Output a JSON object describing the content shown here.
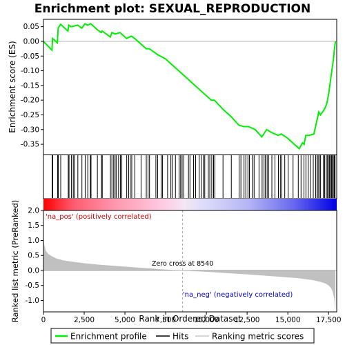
{
  "chart_data": {
    "type": "line",
    "title": "Enrichment plot: SEXUAL_REPRODUCTION",
    "xlabel": "Rank in Ordered Dataset",
    "top_panel": {
      "ylabel": "Enrichment score (ES)",
      "ylim": [
        -0.385,
        0.075
      ],
      "yticks": [
        0.05,
        0.0,
        -0.05,
        -0.1,
        -0.15,
        -0.2,
        -0.25,
        -0.3,
        -0.35
      ],
      "ytick_labels": [
        "0.05",
        "0.00",
        "-0.05",
        "-0.10",
        "-0.15",
        "-0.20",
        "-0.25",
        "-0.30",
        "-0.35"
      ],
      "series": [
        {
          "name": "Enrichment profile",
          "color": "#00ee00",
          "x": [
            0,
            520,
            560,
            850,
            900,
            1050,
            1500,
            1560,
            1700,
            2100,
            2350,
            2550,
            2700,
            2900,
            3300,
            3550,
            3600,
            4100,
            4200,
            4400,
            4700,
            4800,
            5100,
            5400,
            5600,
            6300,
            6500,
            7000,
            7500,
            8000,
            8500,
            9000,
            9500,
            10000,
            10300,
            10500,
            11000,
            11500,
            12000,
            12300,
            12600,
            13000,
            13400,
            13700,
            14000,
            14400,
            14600,
            15000,
            15400,
            15700,
            15900,
            16000,
            16100,
            16300,
            16600,
            16700,
            16800,
            16900,
            17000,
            17200,
            17300,
            17400,
            17500,
            17600,
            17700,
            17800,
            17850,
            17920
          ],
          "y": [
            0.0,
            -0.03,
            0.01,
            -0.005,
            0.045,
            0.058,
            0.035,
            0.055,
            0.05,
            0.055,
            0.045,
            0.06,
            0.055,
            0.06,
            0.04,
            0.03,
            0.035,
            0.015,
            0.03,
            0.025,
            0.03,
            0.025,
            0.01,
            0.018,
            0.01,
            -0.025,
            -0.025,
            -0.045,
            -0.06,
            -0.085,
            -0.11,
            -0.135,
            -0.16,
            -0.185,
            -0.2,
            -0.2,
            -0.23,
            -0.255,
            -0.285,
            -0.29,
            -0.29,
            -0.3,
            -0.325,
            -0.3,
            -0.31,
            -0.32,
            -0.315,
            -0.33,
            -0.35,
            -0.365,
            -0.345,
            -0.35,
            -0.32,
            -0.32,
            -0.315,
            -0.29,
            -0.265,
            -0.24,
            -0.25,
            -0.235,
            -0.225,
            -0.21,
            -0.18,
            -0.14,
            -0.1,
            -0.06,
            -0.03,
            0.0
          ]
        }
      ]
    },
    "hits_panel": {
      "hit_ranks": [
        530,
        570,
        870,
        910,
        1060,
        1520,
        1570,
        1720,
        1830,
        1900,
        2110,
        2360,
        2560,
        2720,
        2880,
        2920,
        3310,
        3560,
        3610,
        4110,
        4200,
        4310,
        4400,
        4480,
        4610,
        4720,
        4810,
        5110,
        5230,
        5330,
        5420,
        5610,
        5990,
        6310,
        6420,
        6510,
        6900,
        7010,
        7230,
        7310,
        7620,
        7820,
        7910,
        8100,
        8330,
        8420,
        8510,
        8610,
        8900,
        8990,
        9210,
        9340,
        9560,
        9690,
        9810,
        9900,
        10120,
        10210,
        10330,
        10440,
        10520,
        11020,
        11530,
        12010,
        12120,
        12310,
        12420,
        12550,
        12640,
        12820,
        12930,
        13230,
        13420,
        13540,
        13620,
        13730,
        13830,
        14020,
        14210,
        14420,
        14540,
        14630,
        14810,
        15020,
        15320,
        15640,
        15810,
        15990,
        16110,
        16250,
        16390,
        16560,
        16710,
        16790,
        16860,
        16930,
        17010,
        17180,
        17260,
        17350,
        17420,
        17500,
        17560,
        17620,
        17680,
        17740,
        17790,
        17850,
        17900
      ]
    },
    "gradient_panel": {
      "positive_color": "#ff0000",
      "negative_color": "#0000ff"
    },
    "bottom_panel": {
      "ylabel": "Ranked list metric (PreRanked)",
      "ylim": [
        -1.38,
        2.0
      ],
      "yticks": [
        2.0,
        1.5,
        1.0,
        0.5,
        0.0,
        -0.5,
        -1.0
      ],
      "ytick_labels": [
        "2.0",
        "1.5",
        "1.0",
        "0.5",
        "0.0",
        "-0.5",
        "-1.0"
      ],
      "series": [
        {
          "name": "Ranking metric scores",
          "color": "#bebebe",
          "x": [
            0,
            50,
            150,
            300,
            500,
            800,
            1200,
            1800,
            2500,
            3500,
            4500,
            5500,
            6500,
            7500,
            8540,
            9500,
            10500,
            11500,
            12500,
            13500,
            14500,
            15500,
            16000,
            16500,
            17000,
            17300,
            17500,
            17650,
            17750,
            17850,
            17920
          ],
          "y": [
            1.1,
            0.85,
            0.65,
            0.55,
            0.48,
            0.4,
            0.34,
            0.29,
            0.24,
            0.19,
            0.15,
            0.11,
            0.07,
            0.03,
            0.0,
            -0.03,
            -0.06,
            -0.1,
            -0.13,
            -0.17,
            -0.21,
            -0.25,
            -0.28,
            -0.32,
            -0.38,
            -0.43,
            -0.5,
            -0.58,
            -0.7,
            -0.95,
            -1.35
          ]
        }
      ],
      "zero_cross": 8540,
      "zero_cross_label": "Zero cross at 8540",
      "pos_label": "'na_pos' (positively correlated)",
      "neg_label": "'na_neg' (negatively correlated)"
    },
    "xlim": [
      0,
      18000
    ],
    "xticks": [
      0,
      2500,
      5000,
      7500,
      10000,
      12500,
      15000,
      17500
    ],
    "xtick_labels": [
      "0",
      "2,500",
      "5,000",
      "7,500",
      "10,000",
      "12,500",
      "15,000",
      "17,500"
    ],
    "legend": {
      "placement": "bottom",
      "entries": [
        {
          "label": "Enrichment profile",
          "color": "#00ee00"
        },
        {
          "label": "Hits",
          "color": "#000000"
        },
        {
          "label": "Ranking metric scores",
          "color": "#bebebe"
        }
      ]
    }
  }
}
